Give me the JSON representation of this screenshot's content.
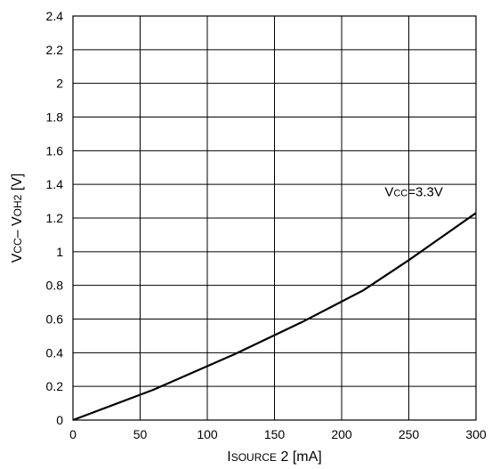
{
  "chart_data": {
    "type": "line",
    "xlabel": {
      "main": "I",
      "sub": "SOURCE",
      "rest": " 2 [mA]"
    },
    "ylabel": {
      "p1": "V",
      "p1sub": "CC",
      "p2": "– V",
      "p2sub": "OH2",
      "p3": " [V]"
    },
    "xlim": [
      0,
      300
    ],
    "ylim": [
      0,
      2.4
    ],
    "x_ticks": [
      "0",
      "50",
      "100",
      "150",
      "200",
      "250",
      "300"
    ],
    "y_ticks": [
      "0",
      "0.2",
      "0.4",
      "0.6",
      "0.8",
      "1",
      "1.2",
      "1.4",
      "1.6",
      "1.8",
      "2",
      "2.2",
      "2.4"
    ],
    "grid": true,
    "series": [
      {
        "x": [
          0,
          60,
          120,
          170,
          216,
          250,
          300
        ],
        "y": [
          0,
          0.18,
          0.39,
          0.58,
          0.77,
          0.95,
          1.23
        ]
      }
    ],
    "annotation": {
      "main": "V",
      "sub": "CC",
      "rest": "=3.3V",
      "x": 232,
      "y": 1.33
    }
  }
}
